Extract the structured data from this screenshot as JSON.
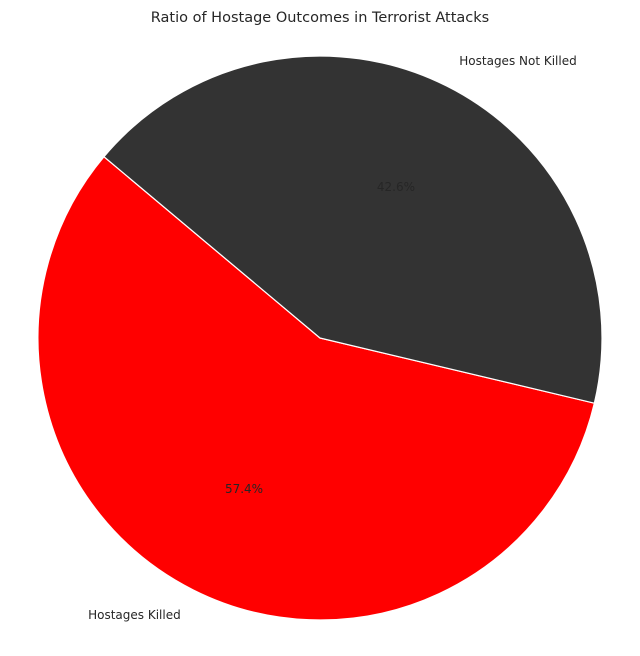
{
  "chart_data": {
    "type": "pie",
    "title": "Ratio of Hostage Outcomes in Terrorist Attacks",
    "labels": [
      "Hostages Killed",
      "Hostages Not Killed"
    ],
    "values": [
      57.4,
      42.6
    ],
    "percent_labels": [
      "57.4%",
      "42.6%"
    ],
    "colors": [
      "#ff0000",
      "#333333"
    ],
    "percent_label_colors": [
      "#262626",
      "#262626"
    ],
    "wedge_edge_color": "#ffffff",
    "start_angle_deg": 140,
    "direction": "counterclockwise",
    "legend": "none"
  }
}
